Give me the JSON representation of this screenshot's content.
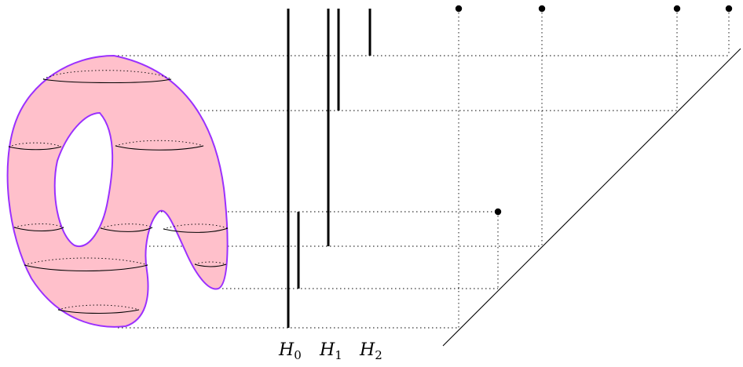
{
  "labels": {
    "h0": {
      "letter": "H",
      "index": "0"
    },
    "h1": {
      "letter": "H",
      "index": "1"
    },
    "h2": {
      "letter": "H",
      "index": "2"
    }
  },
  "colors": {
    "surface_fill": "#ffc0cb",
    "surface_outline": "#9b30ff",
    "ink": "#000000"
  }
}
